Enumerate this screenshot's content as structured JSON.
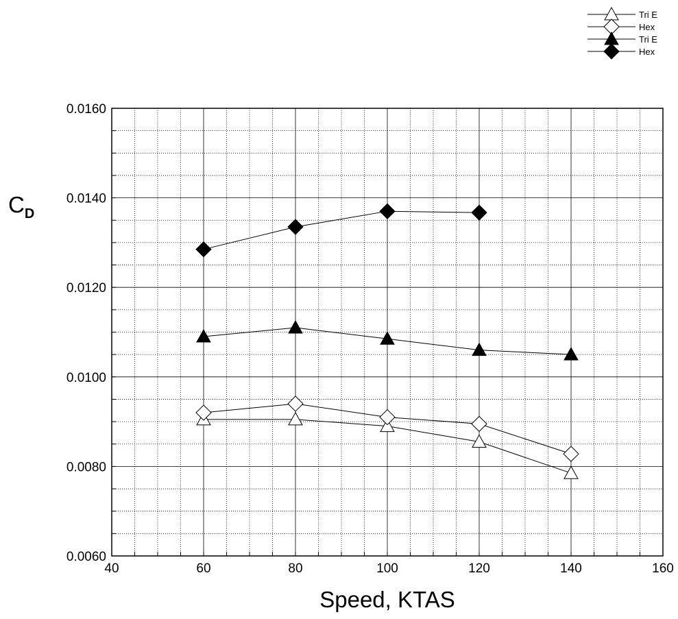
{
  "chart_data": {
    "type": "line",
    "title": "",
    "xlabel": "Speed, KTAS",
    "ylabel": {
      "main": "C",
      "sub": "D"
    },
    "xlim": [
      40,
      160
    ],
    "ylim": [
      0.006,
      0.016
    ],
    "x_ticks": [
      40,
      60,
      80,
      100,
      120,
      140,
      160
    ],
    "y_ticks": [
      "0.0060",
      "0.0080",
      "0.0100",
      "0.0120",
      "0.0140",
      "0.0160"
    ],
    "grid": true,
    "legend_placement": "top-right",
    "series": [
      {
        "name": "Tri E",
        "marker": "triangle-open",
        "points": [
          [
            60,
            0.00905
          ],
          [
            80,
            0.00905
          ],
          [
            100,
            0.0089
          ],
          [
            120,
            0.00855
          ],
          [
            140,
            0.00785
          ]
        ]
      },
      {
        "name": "Hex",
        "marker": "diamond-open",
        "points": [
          [
            60,
            0.0092
          ],
          [
            80,
            0.0094
          ],
          [
            100,
            0.0091
          ],
          [
            120,
            0.00895
          ],
          [
            140,
            0.00828
          ]
        ]
      },
      {
        "name": "Tri E",
        "marker": "triangle-filled",
        "points": [
          [
            60,
            0.0109
          ],
          [
            80,
            0.0111
          ],
          [
            100,
            0.01085
          ],
          [
            120,
            0.0106
          ],
          [
            140,
            0.0105
          ]
        ]
      },
      {
        "name": "Hex",
        "marker": "diamond-filled",
        "points": [
          [
            60,
            0.01285
          ],
          [
            80,
            0.01335
          ],
          [
            100,
            0.0137
          ],
          [
            120,
            0.01367
          ]
        ]
      }
    ]
  }
}
